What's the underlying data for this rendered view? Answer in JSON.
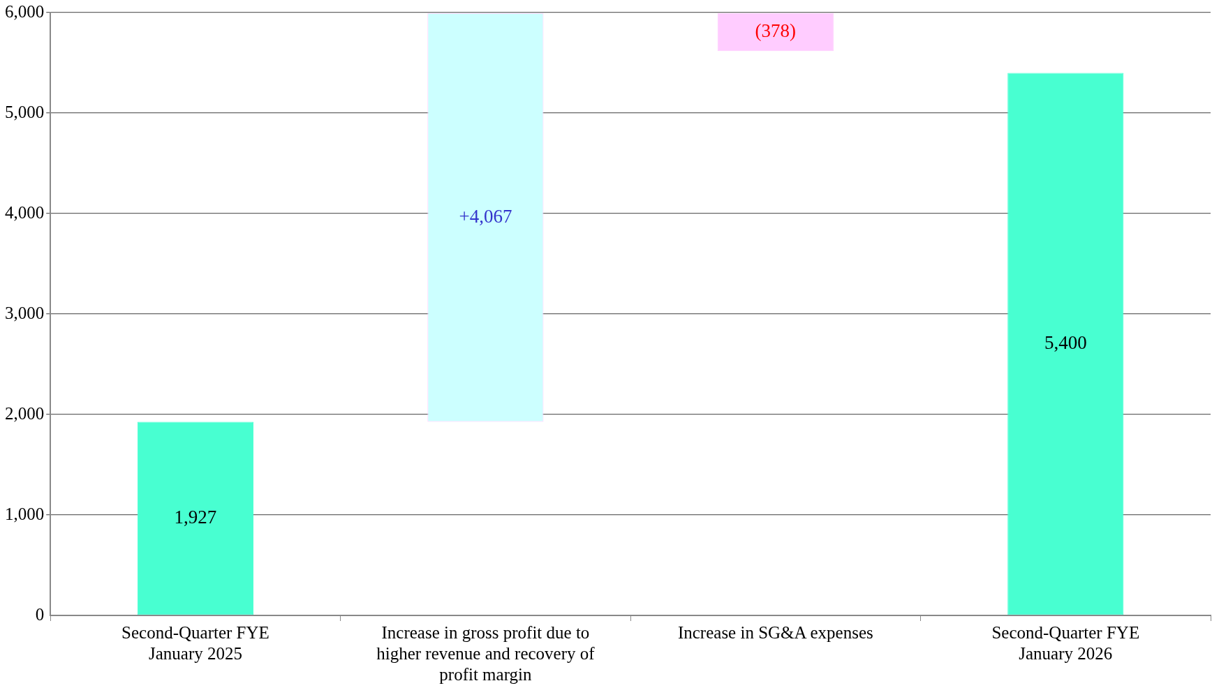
{
  "chart_data": {
    "type": "bar",
    "categories": [
      "Second-Quarter FYE January 2025",
      "Increase in gross profit due to higher revenue and recovery of profit margin",
      "Increase in SG&A expenses",
      "Second-Quarter FYE January 2026"
    ],
    "values": [
      1927,
      4067,
      -378,
      5400
    ],
    "base": [
      0,
      1927,
      5994,
      0
    ],
    "colors": [
      "#48ffd1",
      "#ccffff",
      "#ffccff",
      "#48ffd1"
    ],
    "value_labels": [
      "1,927",
      "+4,067",
      "(378)",
      "5,400"
    ],
    "ylim": [
      0,
      6000
    ],
    "yticks": [
      {
        "value": 0,
        "label": "0"
      },
      {
        "value": 1000,
        "label": "1,000"
      },
      {
        "value": 2000,
        "label": "2,000"
      },
      {
        "value": 3000,
        "label": "3,000"
      },
      {
        "value": 4000,
        "label": "4,000"
      },
      {
        "value": 5000,
        "label": "5,000"
      },
      {
        "value": 6000,
        "label": "6,000"
      }
    ],
    "grid": "y",
    "legend": false
  }
}
